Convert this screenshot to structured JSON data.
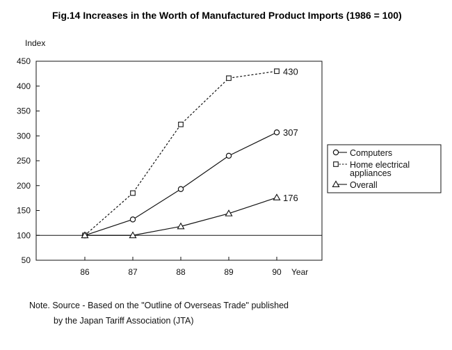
{
  "figure": {
    "title": "Fig.14 Increases in the Worth of Manufactured Product Imports (1986 = 100)",
    "note_line1": "Note. Source - Based on the \"Outline of Overseas Trade\" published",
    "note_line2": "by the Japan Tariff Association (JTA)"
  },
  "chart_data": {
    "type": "line",
    "title": "Fig.14 Increases in the Worth of Manufactured Product Imports (1986 = 100)",
    "xlabel": "Year",
    "ylabel": "Index",
    "categories": [
      "86",
      "87",
      "88",
      "89",
      "90"
    ],
    "ylim": [
      50,
      450
    ],
    "yticks": [
      "450",
      "400",
      "350",
      "300",
      "250",
      "200",
      "150",
      "100",
      "50"
    ],
    "grid": false,
    "legend_position": "right",
    "series": [
      {
        "name": "Computers",
        "marker": "circle",
        "style": "solid",
        "values": [
          100,
          132,
          193,
          260,
          307
        ],
        "end_label": "307"
      },
      {
        "name": "Home electrical appliances",
        "name_lines": [
          "Home electrical",
          "appliances"
        ],
        "marker": "square",
        "style": "dashed",
        "values": [
          100,
          185,
          323,
          416,
          430
        ],
        "end_label": "430"
      },
      {
        "name": "Overall",
        "marker": "triangle",
        "style": "solid",
        "values": [
          100,
          100,
          118,
          144,
          176
        ],
        "end_label": "176"
      }
    ]
  }
}
